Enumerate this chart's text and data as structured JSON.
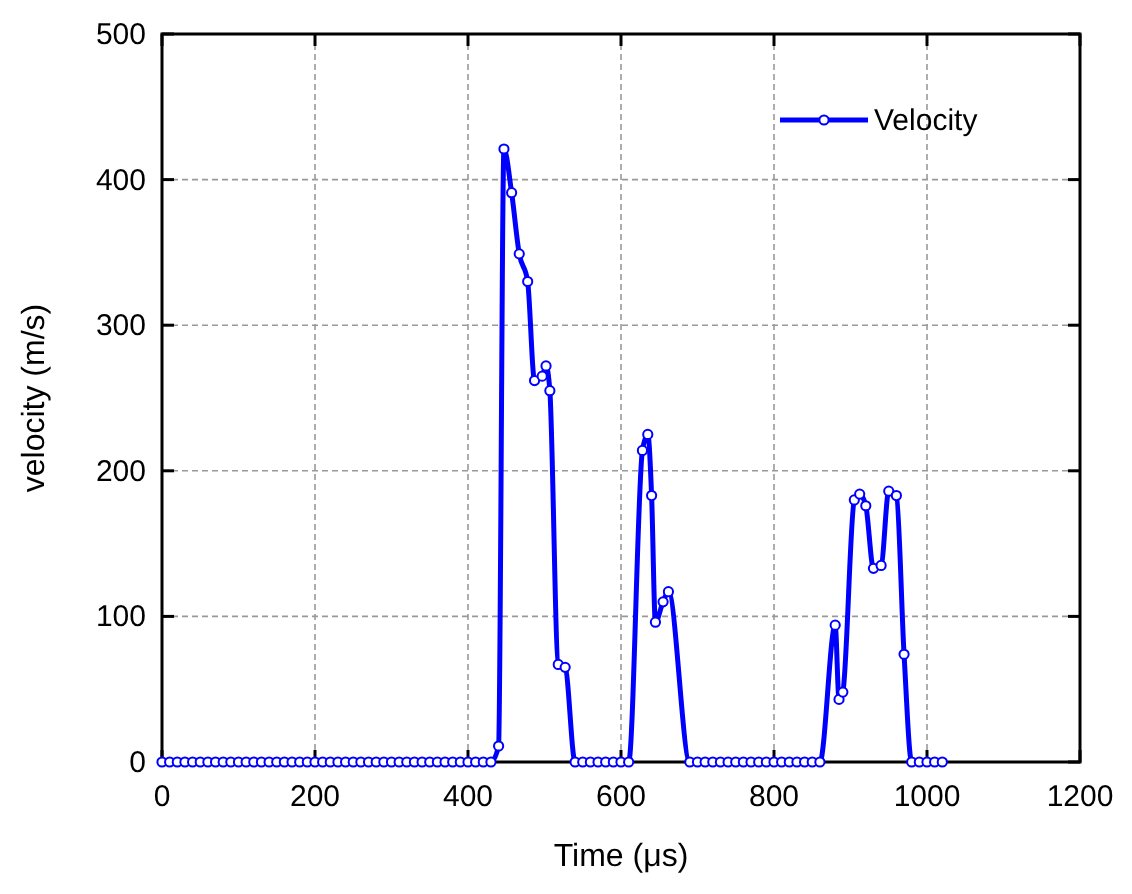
{
  "chart_data": {
    "type": "line",
    "xlabel": "Time (μs)",
    "ylabel": "velocity (m/s)",
    "xlim": [
      0,
      1200
    ],
    "ylim": [
      0,
      500
    ],
    "xticks": [
      0,
      200,
      400,
      600,
      800,
      1000,
      1200
    ],
    "yticks": [
      0,
      100,
      200,
      300,
      400,
      500
    ],
    "grid": true,
    "legend": "top right",
    "marker": "circle",
    "line_style": "solid",
    "series": [
      {
        "name": "Velocity",
        "color": "#0000ff",
        "x": [
          0,
          10,
          20,
          30,
          40,
          50,
          60,
          70,
          80,
          90,
          100,
          110,
          120,
          130,
          140,
          150,
          160,
          170,
          180,
          190,
          200,
          210,
          220,
          230,
          240,
          250,
          260,
          270,
          280,
          290,
          300,
          310,
          320,
          330,
          340,
          350,
          360,
          370,
          380,
          390,
          400,
          410,
          420,
          430,
          440,
          447,
          457,
          467,
          478,
          487,
          497,
          502,
          507,
          518,
          527,
          540,
          550,
          560,
          570,
          580,
          590,
          600,
          610,
          628,
          635,
          640,
          645,
          655,
          662,
          690,
          700,
          710,
          720,
          730,
          740,
          750,
          760,
          770,
          780,
          790,
          800,
          810,
          820,
          830,
          840,
          850,
          860,
          880,
          885,
          890,
          905,
          912,
          920,
          930,
          940,
          950,
          960,
          970,
          980,
          990,
          1000,
          1010,
          1020
        ],
        "values": [
          0,
          0,
          0,
          0,
          0,
          0,
          0,
          0,
          0,
          0,
          0,
          0,
          0,
          0,
          0,
          0,
          0,
          0,
          0,
          0,
          0,
          0,
          0,
          0,
          0,
          0,
          0,
          0,
          0,
          0,
          0,
          0,
          0,
          0,
          0,
          0,
          0,
          0,
          0,
          0,
          0,
          0,
          0,
          0,
          11,
          421,
          391,
          349,
          330,
          262,
          265,
          272,
          255,
          67,
          65,
          0,
          0,
          0,
          0,
          0,
          0,
          0,
          0,
          214,
          225,
          183,
          96,
          110,
          117,
          0,
          0,
          0,
          0,
          0,
          0,
          0,
          0,
          0,
          0,
          0,
          0,
          0,
          0,
          0,
          0,
          0,
          0,
          94,
          43,
          48,
          180,
          184,
          176,
          133,
          135,
          186,
          183,
          74,
          0,
          0,
          0,
          0,
          0
        ]
      }
    ]
  }
}
